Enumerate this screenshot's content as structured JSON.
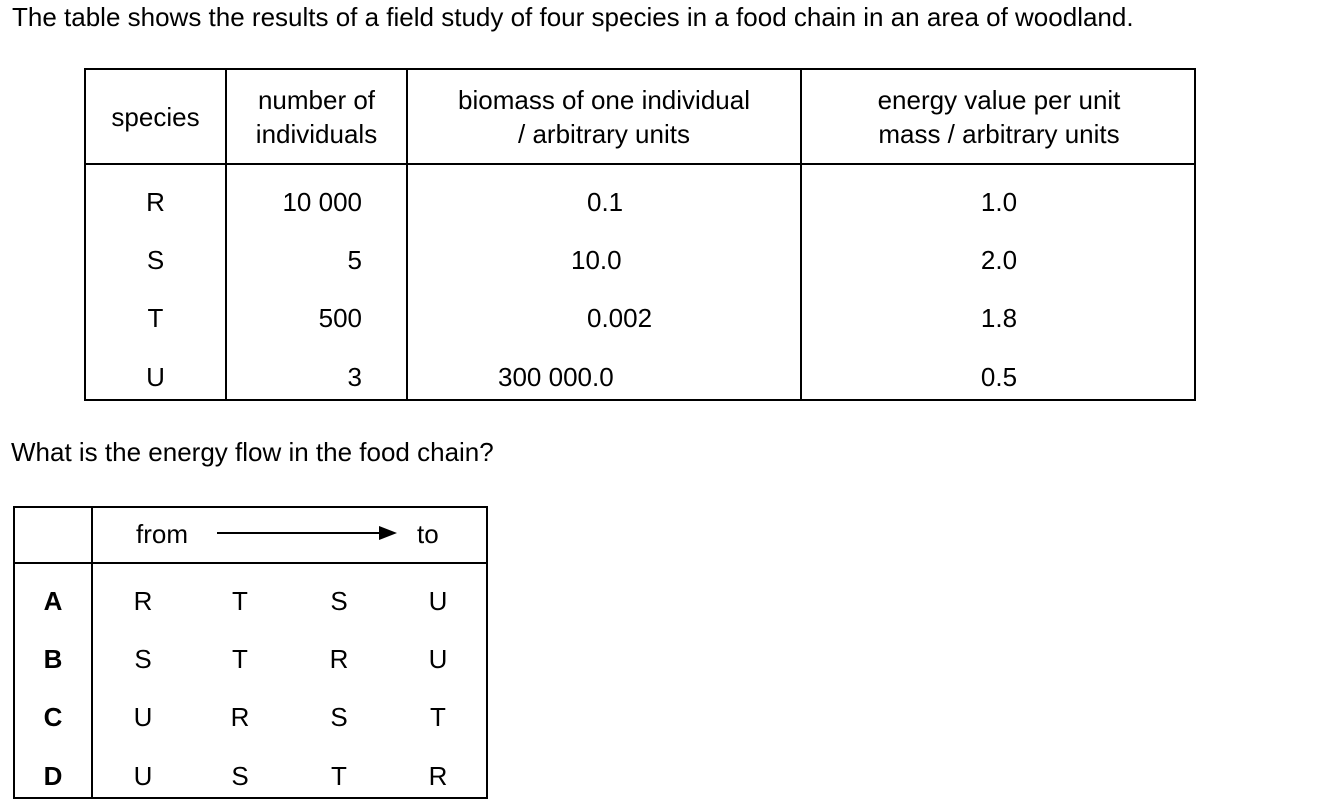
{
  "intro": "The table shows the results of a field study of four species in a food chain in an area of woodland.",
  "table": {
    "headers": {
      "species": "species",
      "number_1": "number of",
      "number_2": "individuals",
      "biomass_1": "biomass of one individual",
      "biomass_2": "/ arbitrary units",
      "energy_1": "energy value per unit",
      "energy_2": "mass / arbitrary units"
    },
    "rows": [
      {
        "species": "R",
        "number": "10 000",
        "biomass": "0.1",
        "energy": "1.0"
      },
      {
        "species": "S",
        "number": "5",
        "biomass": "10.0",
        "energy": "2.0"
      },
      {
        "species": "T",
        "number": "500",
        "biomass": "0.002",
        "energy": "1.8"
      },
      {
        "species": "U",
        "number": "3",
        "biomass": "300 000.0",
        "energy": "0.5"
      }
    ]
  },
  "question": "What is the energy flow in the food chain?",
  "answers": {
    "from": "from",
    "to": "to",
    "options": [
      {
        "letter": "A",
        "chain": [
          "R",
          "T",
          "S",
          "U"
        ]
      },
      {
        "letter": "B",
        "chain": [
          "S",
          "T",
          "R",
          "U"
        ]
      },
      {
        "letter": "C",
        "chain": [
          "U",
          "R",
          "S",
          "T"
        ]
      },
      {
        "letter": "D",
        "chain": [
          "U",
          "S",
          "T",
          "R"
        ]
      }
    ]
  }
}
